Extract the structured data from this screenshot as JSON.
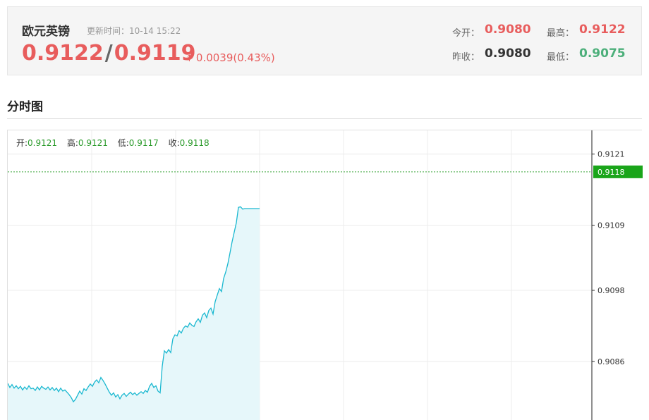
{
  "header": {
    "title": "欧元英镑",
    "update_label": "更新时间：",
    "update_time": "10-14 15:22",
    "bid": "0.9122",
    "separator": "/",
    "ask": "0.9119",
    "change": "0.0039(0.43%)",
    "arrow": "↑",
    "stats": {
      "open_label": "今开：",
      "open_value": "0.9080",
      "high_label": "最高：",
      "high_value": "0.9122",
      "prev_close_label": "昨收：",
      "prev_close_value": "0.9080",
      "low_label": "最低：",
      "low_value": "0.9075"
    }
  },
  "section": {
    "title": "分时图"
  },
  "ohlc": {
    "open_label": "开:",
    "open_value": "0.9121",
    "high_label": "高:",
    "high_value": "0.9121",
    "low_label": "低:",
    "low_value": "0.9117",
    "close_label": "收:",
    "close_value": "0.9118"
  },
  "colors": {
    "up": "#e85d5d",
    "down": "#4caf7a",
    "line": "#1ab8d0",
    "area": "#e6f7fa",
    "current_bg": "#1aa51a",
    "close_text": "#2a9a2a"
  },
  "chart_data": {
    "type": "area",
    "ylim": [
      0.9076,
      0.9125
    ],
    "y_ticks": [
      "0.9121",
      "0.9109",
      "0.9098",
      "0.9086"
    ],
    "current_price": "0.9118",
    "grid": true,
    "x": [
      0,
      3,
      6,
      9,
      12,
      15,
      18,
      21,
      24,
      27,
      30,
      33,
      36,
      39,
      42,
      45,
      48,
      51,
      54,
      57,
      60,
      63,
      66,
      69,
      72,
      75,
      78,
      81,
      84,
      87,
      90,
      93,
      96,
      99,
      102,
      105,
      108,
      111,
      114,
      117,
      120,
      123,
      126,
      129,
      132,
      135,
      138,
      141,
      144,
      147,
      150,
      153,
      156,
      159,
      162,
      165,
      168,
      171,
      174,
      177,
      180,
      183,
      186,
      189,
      192,
      195,
      198,
      201,
      204,
      207,
      210,
      213,
      216,
      219,
      222,
      225,
      228,
      231,
      234,
      237,
      240,
      243,
      246,
      249,
      252,
      255,
      258,
      261,
      264,
      267,
      270,
      273,
      276,
      279,
      282,
      285,
      288,
      291,
      294,
      297,
      300,
      303,
      306,
      309,
      312,
      315,
      318,
      321,
      324,
      327,
      330,
      333,
      336,
      339,
      342,
      345,
      348,
      351,
      354,
      357
    ],
    "values": [
      0.90823,
      0.90816,
      0.90821,
      0.90815,
      0.90819,
      0.90814,
      0.90818,
      0.90812,
      0.90817,
      0.90813,
      0.90819,
      0.90814,
      0.90815,
      0.90811,
      0.90817,
      0.90812,
      0.90818,
      0.90815,
      0.90813,
      0.90817,
      0.90812,
      0.90816,
      0.90811,
      0.90815,
      0.90809,
      0.90815,
      0.9081,
      0.90812,
      0.90808,
      0.90804,
      0.90799,
      0.90792,
      0.90796,
      0.90803,
      0.9081,
      0.90805,
      0.90814,
      0.90811,
      0.90817,
      0.90822,
      0.90818,
      0.90825,
      0.90829,
      0.90824,
      0.90833,
      0.90828,
      0.90822,
      0.90815,
      0.90808,
      0.90803,
      0.90807,
      0.908,
      0.90804,
      0.90797,
      0.90803,
      0.90806,
      0.90801,
      0.90805,
      0.90808,
      0.90804,
      0.90807,
      0.90803,
      0.90806,
      0.90809,
      0.90806,
      0.90811,
      0.90808,
      0.90818,
      0.90823,
      0.90816,
      0.90819,
      0.9081,
      0.90807,
      0.90852,
      0.90878,
      0.90874,
      0.9088,
      0.90875,
      0.90898,
      0.90905,
      0.90903,
      0.90912,
      0.90908,
      0.90916,
      0.9092,
      0.90918,
      0.90925,
      0.90921,
      0.90919,
      0.90927,
      0.90932,
      0.90926,
      0.90938,
      0.90942,
      0.90934,
      0.90946,
      0.9095,
      0.9094,
      0.90961,
      0.90972,
      0.90983,
      0.90978,
      0.91,
      0.91011,
      0.91025,
      0.91043,
      0.91062,
      0.91078,
      0.91094,
      0.9112,
      0.91121,
      0.91117,
      0.91118,
      0.91118,
      0.91118,
      0.91118,
      0.91118,
      0.91118,
      0.91118,
      0.91118
    ]
  }
}
